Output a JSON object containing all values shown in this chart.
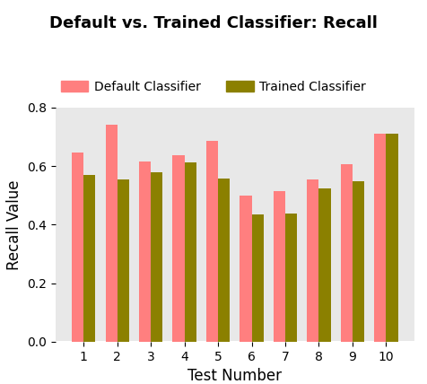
{
  "title": "Default vs. Trained Classifier: Recall",
  "xlabel": "Test Number",
  "ylabel": "Recall Value",
  "categories": [
    1,
    2,
    3,
    4,
    5,
    6,
    7,
    8,
    9,
    10
  ],
  "default_values": [
    0.645,
    0.74,
    0.615,
    0.638,
    0.685,
    0.5,
    0.515,
    0.555,
    0.605,
    0.71
  ],
  "trained_values": [
    0.57,
    0.555,
    0.58,
    0.612,
    0.558,
    0.435,
    0.438,
    0.525,
    0.548,
    0.71
  ],
  "default_color": "#FF7F7F",
  "trained_color": "#8B8000",
  "background_color": "#E8E8E8",
  "ylim": [
    0.0,
    0.8
  ],
  "yticks": [
    0.0,
    0.2,
    0.4,
    0.6,
    0.8
  ],
  "legend_labels": [
    "Default Classifier",
    "Trained Classifier"
  ],
  "bar_width": 0.35,
  "title_fontsize": 13,
  "axis_label_fontsize": 12,
  "tick_fontsize": 10,
  "legend_fontsize": 10
}
